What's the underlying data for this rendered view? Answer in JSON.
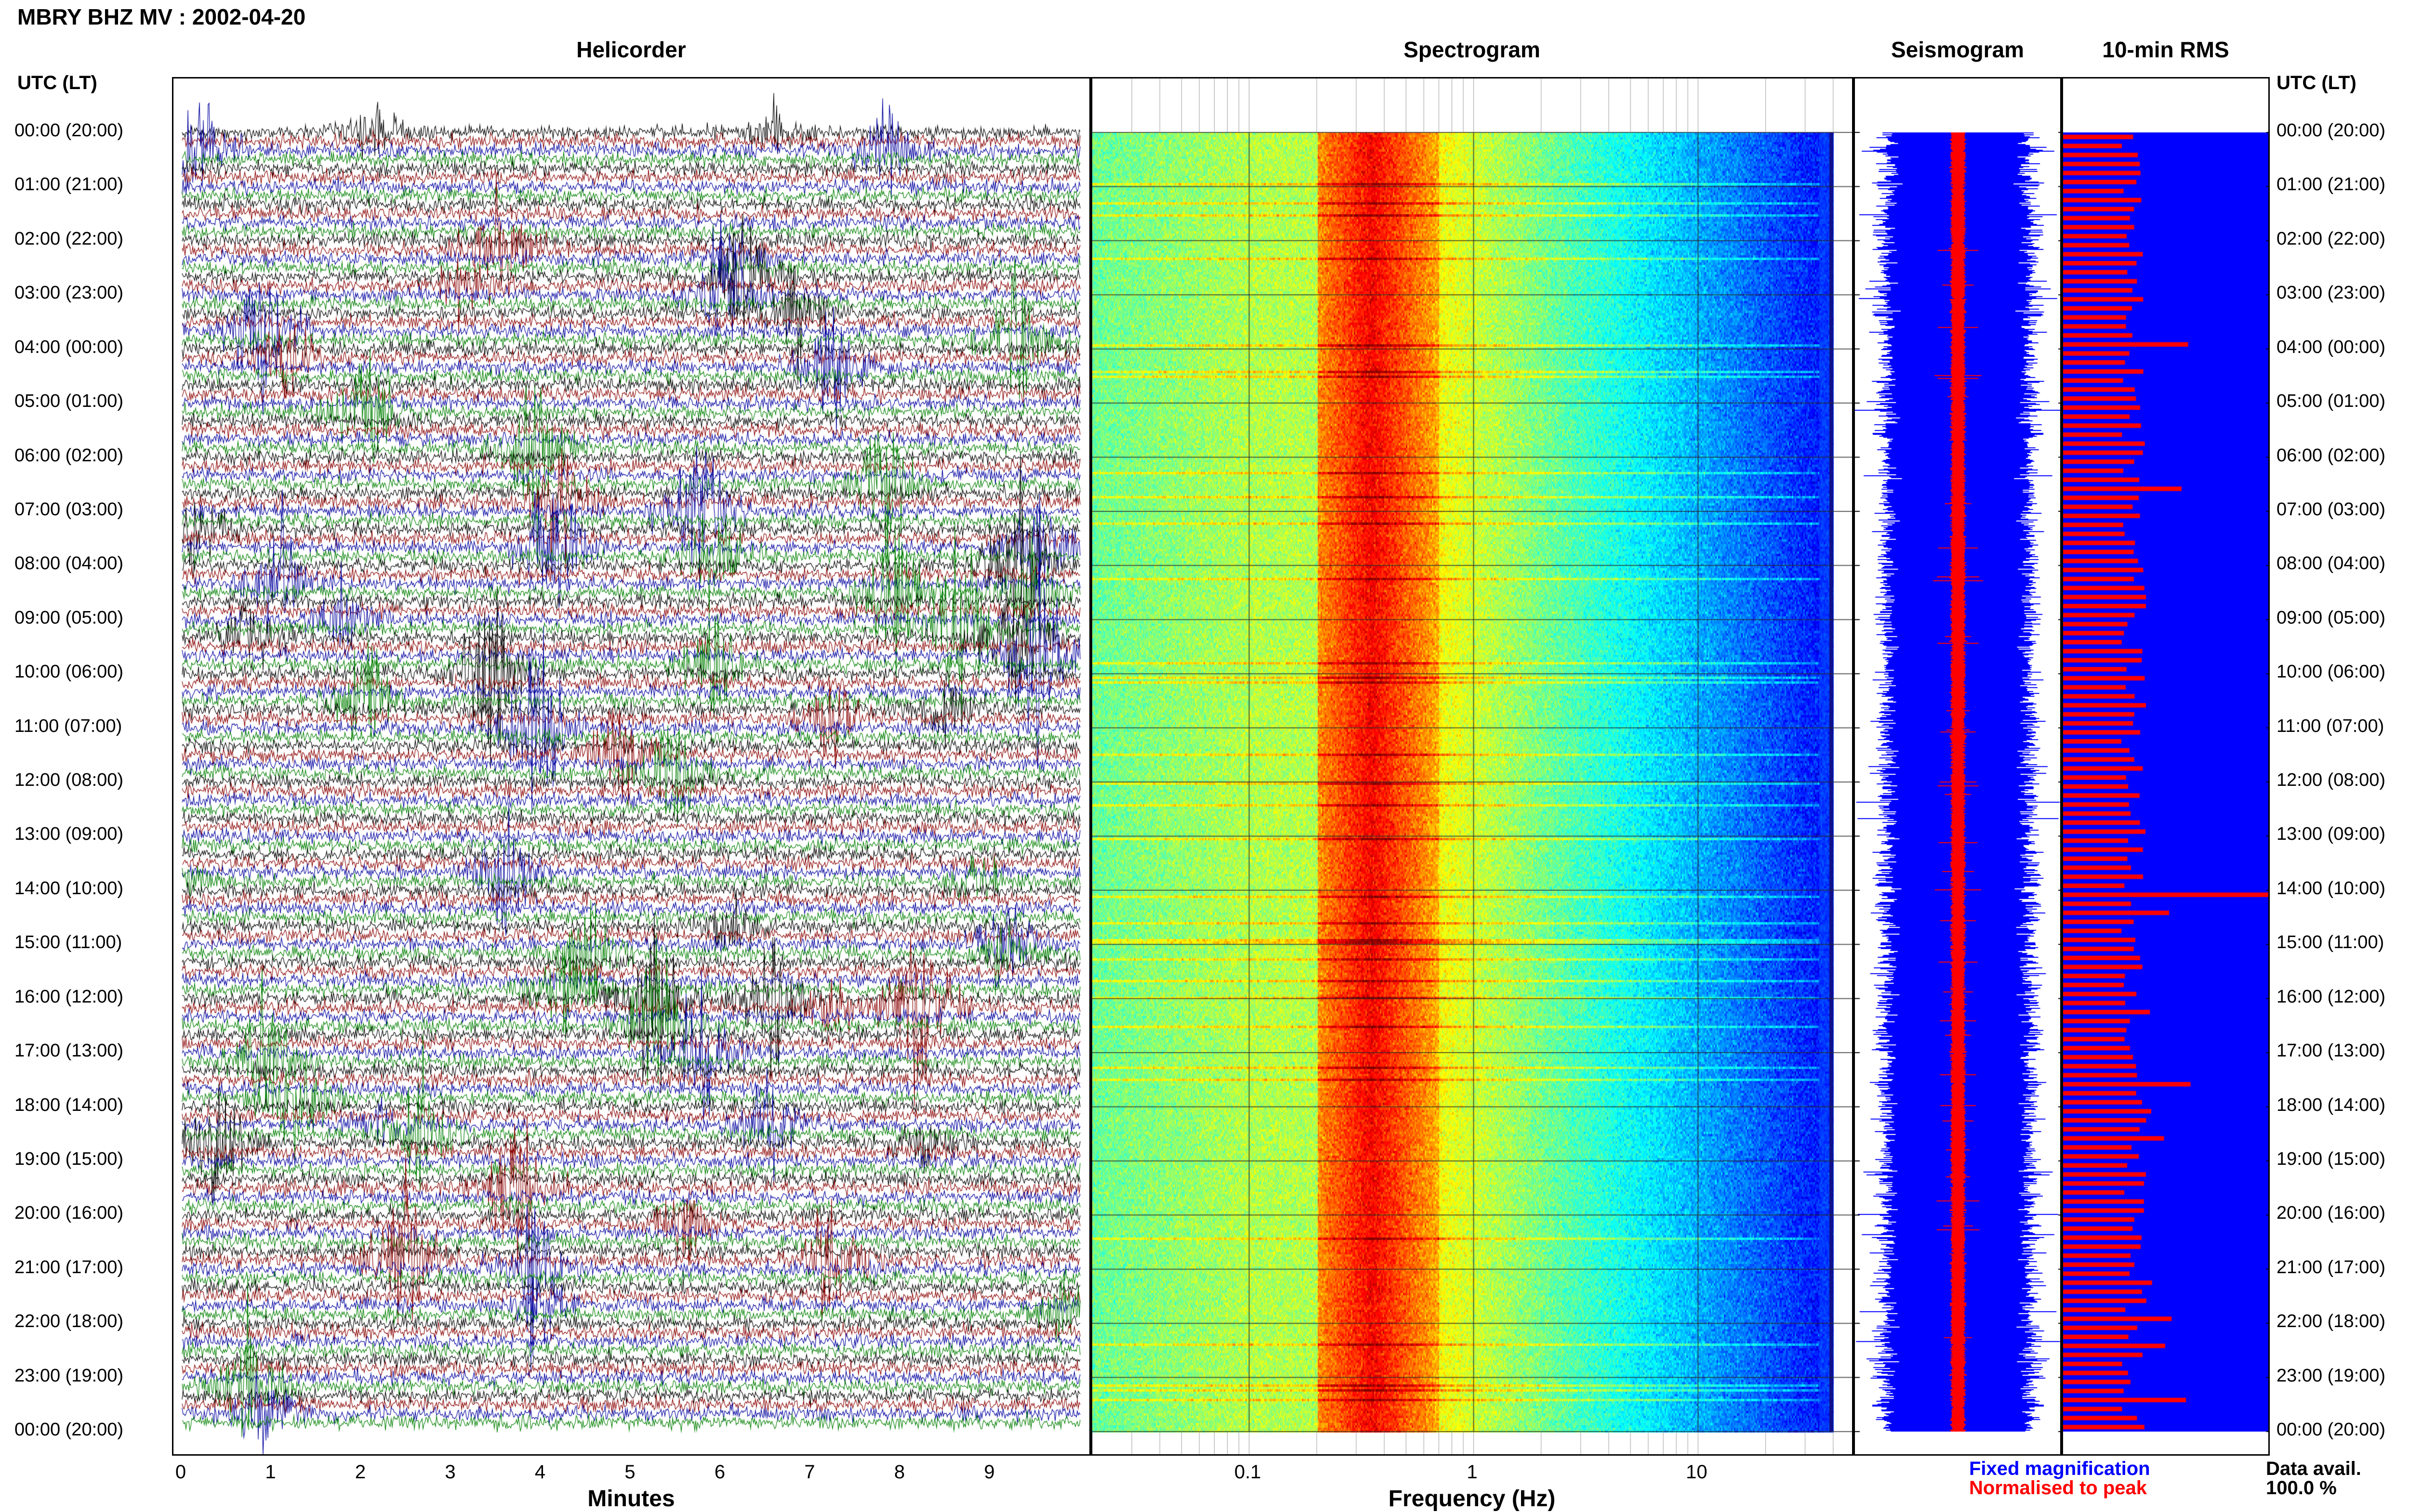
{
  "title": "MBRY BHZ MV : 2002-04-20",
  "panels": {
    "helicorder": "Helicorder",
    "spectrogram": "Spectrogram",
    "seismogram": "Seismogram",
    "rms": "10-min RMS"
  },
  "time_axis_header": "UTC (LT)",
  "hour_labels": [
    "00:00 (20:00)",
    "01:00 (21:00)",
    "02:00 (22:00)",
    "03:00 (23:00)",
    "04:00 (00:00)",
    "05:00 (01:00)",
    "06:00 (02:00)",
    "07:00 (03:00)",
    "08:00 (04:00)",
    "09:00 (05:00)",
    "10:00 (06:00)",
    "11:00 (07:00)",
    "12:00 (08:00)",
    "13:00 (09:00)",
    "14:00 (10:00)",
    "15:00 (11:00)",
    "16:00 (12:00)",
    "17:00 (13:00)",
    "18:00 (14:00)",
    "19:00 (15:00)",
    "20:00 (16:00)",
    "21:00 (17:00)",
    "22:00 (18:00)",
    "23:00 (19:00)",
    "00:00 (20:00)"
  ],
  "legend": {
    "fixed": "Fixed magnification",
    "normalised": "Normalised to peak",
    "fixed_color": "#0000ff",
    "normalised_color": "#ff0000"
  },
  "data_availability": {
    "label": "Data avail.",
    "value": "100.0 %"
  },
  "chart_data": [
    {
      "type": "line",
      "title": "Helicorder",
      "xlabel": "Minutes",
      "xlim": [
        0,
        10
      ],
      "x_ticks": [
        "0",
        "1",
        "2",
        "3",
        "4",
        "5",
        "6",
        "7",
        "8",
        "9"
      ],
      "y_ticks": "hour_labels",
      "rows": 144,
      "row_minutes": 10,
      "trace_colors": [
        "#000000",
        "#8b0000",
        "#0000a0",
        "#008000"
      ]
    },
    {
      "type": "heatmap",
      "title": "Spectrogram",
      "xlabel": "Frequency (Hz)",
      "x_scale": "log",
      "xlim": [
        0.02,
        50
      ],
      "x_ticks": [
        "0.1",
        "1",
        "10"
      ],
      "dominant_band_hz": [
        0.2,
        0.6
      ],
      "upper_cutoff_hz": 40
    },
    {
      "type": "line",
      "title": "Seismogram",
      "series": [
        {
          "name": "Fixed magnification",
          "color": "#0000ff"
        },
        {
          "name": "Normalised to peak",
          "color": "#ff0000"
        }
      ]
    },
    {
      "type": "bar",
      "title": "10-min RMS",
      "orientation": "horizontal",
      "bar_color": "#ff0000",
      "background_color": "#0000ff",
      "rows": 144,
      "peak_row_hour": 14.0
    }
  ]
}
